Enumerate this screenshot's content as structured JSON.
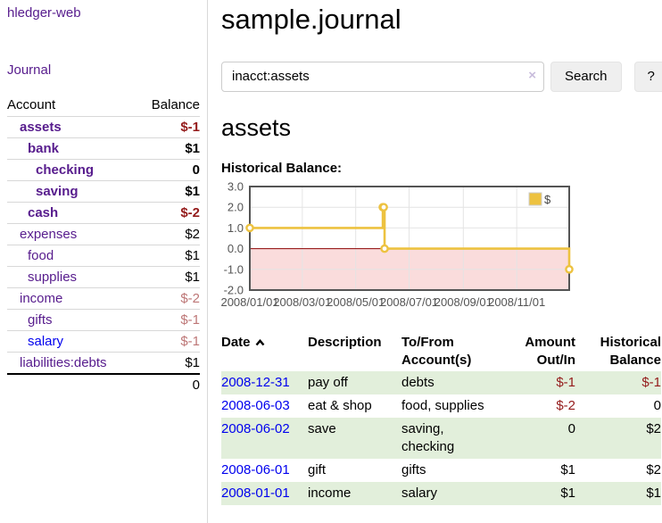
{
  "app": {
    "brand": "hledger-web"
  },
  "sidebar": {
    "journal_link": "Journal",
    "balance_table": {
      "headers": {
        "account": "Account",
        "balance": "Balance"
      },
      "rows": [
        {
          "account": "assets",
          "level": 1,
          "bold": true,
          "balance": "$-1",
          "balance_style": "neg-strong"
        },
        {
          "account": "bank",
          "level": 2,
          "bold": true,
          "balance": "$1",
          "balance_style": "pos"
        },
        {
          "account": "checking",
          "level": 3,
          "bold": true,
          "balance": "0",
          "balance_style": "pos"
        },
        {
          "account": "saving",
          "level": 3,
          "bold": true,
          "balance": "$1",
          "balance_style": "pos"
        },
        {
          "account": "cash",
          "level": 2,
          "bold": true,
          "balance": "$-2",
          "balance_style": "neg-strong"
        },
        {
          "account": "expenses",
          "level": 1,
          "bold": false,
          "balance": "$2",
          "balance_style": "pos"
        },
        {
          "account": "food",
          "level": 2,
          "bold": false,
          "balance": "$1",
          "balance_style": "pos"
        },
        {
          "account": "supplies",
          "level": 2,
          "bold": false,
          "balance": "$1",
          "balance_style": "pos"
        },
        {
          "account": "income",
          "level": 1,
          "bold": false,
          "balance": "$-2",
          "balance_style": "neg-muted"
        },
        {
          "account": "gifts",
          "level": 2,
          "bold": false,
          "balance": "$-1",
          "balance_style": "neg-muted"
        },
        {
          "account": "salary",
          "level": 2,
          "bold": false,
          "link_style": "blue",
          "balance": "$-1",
          "balance_style": "neg-muted"
        },
        {
          "account": "liabilities:debts",
          "level": 1,
          "bold": false,
          "balance": "$1",
          "balance_style": "pos"
        }
      ],
      "total": "0"
    }
  },
  "header": {
    "title": "sample.journal"
  },
  "search": {
    "value": "inacct:assets",
    "clear_icon": "×",
    "button_label": "Search",
    "help_label": "?"
  },
  "account_page": {
    "heading": "assets",
    "chart_label": "Historical Balance:"
  },
  "chart_data": {
    "type": "line",
    "step": true,
    "title": "Historical Balance:",
    "series": [
      {
        "name": "$",
        "color": "#edc240",
        "points": [
          [
            "2008-01-01",
            1
          ],
          [
            "2008-06-01",
            2
          ],
          [
            "2008-06-02",
            2
          ],
          [
            "2008-06-03",
            0
          ],
          [
            "2008-12-31",
            -1
          ]
        ]
      }
    ],
    "x_range": [
      "2008-01-01",
      "2008-12-31"
    ],
    "ylim": [
      -2,
      3
    ],
    "y_tick_labels": [
      "3.0",
      "2.0",
      "1.0",
      "0.0",
      "-1.0",
      "-2.0"
    ],
    "x_tick_labels": [
      "2008/01/01",
      "2008/03/01",
      "2008/05/01",
      "2008/07/01",
      "2008/09/01",
      "2008/11/01"
    ],
    "grid": true,
    "legend_position": "top-right",
    "colors": {
      "negative_region": "#fadcdc",
      "zero_line": "#8b0000",
      "grid_line": "#e4e4e4",
      "border": "#545454",
      "tick_text": "#545454",
      "marker_fill": "#ffffff"
    }
  },
  "register": {
    "headers": {
      "date": "Date",
      "description": "Description",
      "accounts": "To/From Account(s)",
      "amount": "Amount Out/In",
      "balance": "Historical Balance"
    },
    "sort_icon": "chevron-up",
    "rows": [
      {
        "date": "2008-12-31",
        "description": "pay off",
        "accounts": "debts",
        "amount": "$-1",
        "amount_style": "neg",
        "balance": "$-1",
        "balance_style": "neg"
      },
      {
        "date": "2008-06-03",
        "description": "eat & shop",
        "accounts": "food, supplies",
        "amount": "$-2",
        "amount_style": "neg",
        "balance": "0",
        "balance_style": "pos"
      },
      {
        "date": "2008-06-02",
        "description": "save",
        "accounts": "saving, checking",
        "amount": "0",
        "amount_style": "pos",
        "balance": "$2",
        "balance_style": "pos"
      },
      {
        "date": "2008-06-01",
        "description": "gift",
        "accounts": "gifts",
        "amount": "$1",
        "amount_style": "pos",
        "balance": "$2",
        "balance_style": "pos"
      },
      {
        "date": "2008-01-01",
        "description": "income",
        "accounts": "salary",
        "amount": "$1",
        "amount_style": "pos",
        "balance": "$1",
        "balance_style": "pos"
      }
    ]
  }
}
